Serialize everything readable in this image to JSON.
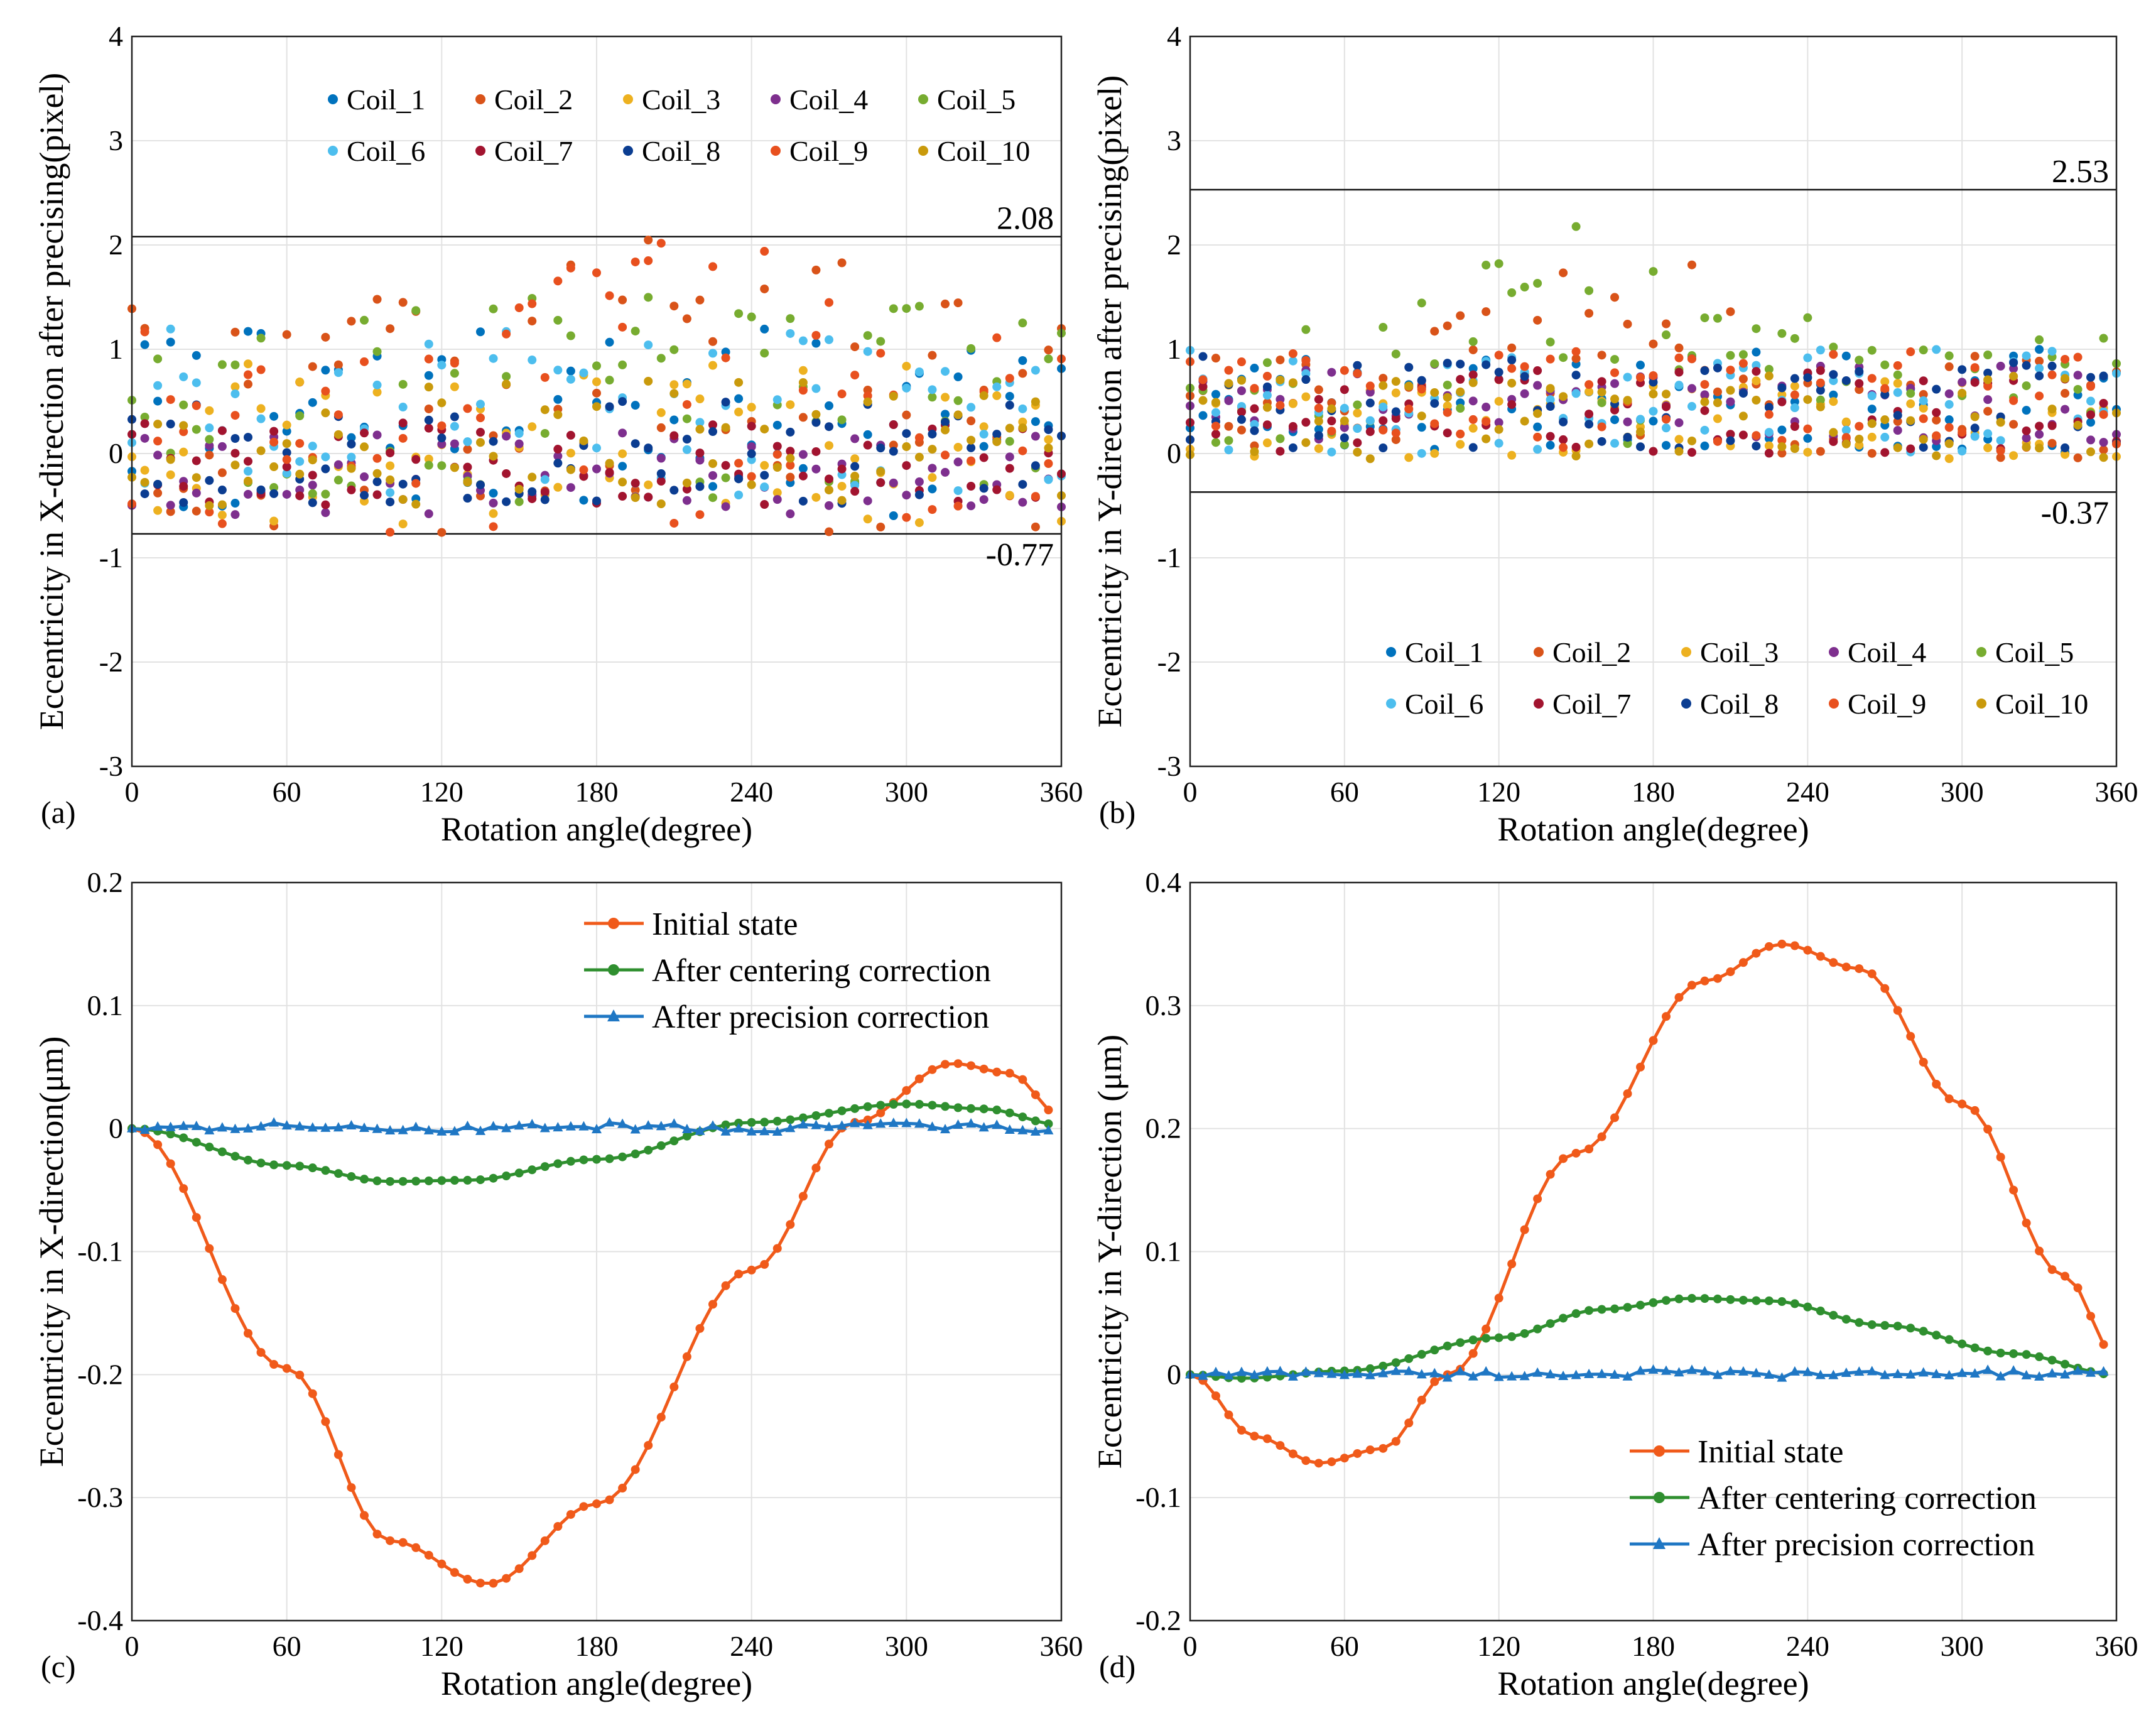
{
  "colors": {
    "coil": [
      "#0072bd",
      "#d95319",
      "#edb120",
      "#7e2f8e",
      "#77ac30",
      "#4dbeee",
      "#a2142f",
      "#0b3d91",
      "#e8501e",
      "#c99a0c"
    ],
    "initial": "#f05a1a",
    "centering": "#2f8f2f",
    "precision": "#1f77c4"
  },
  "chart_data": [
    {
      "type": "scatter",
      "panel": "(a)",
      "xlabel": "Rotation angle(degree)",
      "ylabel": "Eccentricity in X-direction after precising(pixel)",
      "xlim": [
        0,
        360
      ],
      "ylim": [
        -3,
        4
      ],
      "xticks": [
        "0",
        "60",
        "120",
        "180",
        "240",
        "300",
        "360"
      ],
      "yticks": [
        "-3",
        "-2",
        "-1",
        "0",
        "1",
        "2",
        "3",
        "4"
      ],
      "grid": true,
      "legend_position": "top",
      "legend": [
        "Coil_1",
        "Coil_2",
        "Coil_3",
        "Coil_4",
        "Coil_5",
        "Coil_6",
        "Coil_7",
        "Coil_8",
        "Coil_9",
        "Coil_10"
      ],
      "upper_bound": 2.08,
      "lower_bound": -0.77,
      "upper_label": "2.08",
      "lower_label": "-0.77",
      "x_step": 5,
      "points_per_series": 73,
      "seed": 7,
      "base": [
        [
          0.3,
          0.9
        ],
        [
          0.2,
          1.3
        ],
        [
          0.1,
          0.8
        ],
        [
          -0.2,
          0.4
        ],
        [
          0.5,
          1.0
        ],
        [
          0.4,
          0.8
        ],
        [
          -0.1,
          0.4
        ],
        [
          0.0,
          0.5
        ],
        [
          0.2,
          1.0
        ],
        [
          0.1,
          0.6
        ]
      ],
      "arch_series": [
        1,
        8
      ],
      "arch_center": 215,
      "arch_height": 1.4
    },
    {
      "type": "scatter",
      "panel": "(b)",
      "xlabel": "Rotation angle(degree)",
      "ylabel": "Eccentricity in Y-direction after precising(pixel)",
      "xlim": [
        0,
        360
      ],
      "ylim": [
        -3,
        4
      ],
      "xticks": [
        "0",
        "60",
        "120",
        "180",
        "240",
        "300",
        "360"
      ],
      "yticks": [
        "-3",
        "-2",
        "-1",
        "0",
        "1",
        "2",
        "3",
        "4"
      ],
      "grid": true,
      "legend_position": "bottom",
      "legend": [
        "Coil_1",
        "Coil_2",
        "Coil_3",
        "Coil_4",
        "Coil_5",
        "Coil_6",
        "Coil_7",
        "Coil_8",
        "Coil_9",
        "Coil_10"
      ],
      "upper_bound": 2.53,
      "lower_bound": -0.37,
      "upper_label": "2.53",
      "lower_label": "-0.37",
      "x_step": 5,
      "points_per_series": 73,
      "seed": 23,
      "base": [
        [
          0.5,
          0.5
        ],
        [
          0.45,
          0.5
        ],
        [
          0.35,
          0.4
        ],
        [
          0.5,
          0.4
        ],
        [
          0.6,
          0.6
        ],
        [
          0.5,
          0.5
        ],
        [
          0.4,
          0.4
        ],
        [
          0.5,
          0.45
        ],
        [
          0.5,
          0.5
        ],
        [
          0.35,
          0.4
        ]
      ],
      "arch_series": [
        1,
        4
      ],
      "arch_center": 160,
      "arch_height": 1.3
    },
    {
      "type": "line",
      "panel": "(c)",
      "xlabel": "Rotation angle(degree)",
      "ylabel": "Eccentricity in X-direction(μm)",
      "xlim": [
        0,
        360
      ],
      "ylim": [
        -0.4,
        0.2
      ],
      "xticks": [
        "0",
        "60",
        "120",
        "180",
        "240",
        "300",
        "360"
      ],
      "yticks": [
        "-0.4",
        "-0.3",
        "-0.2",
        "-0.1",
        "0",
        "0.1",
        "0.2"
      ],
      "ytick_values": [
        -0.4,
        -0.3,
        -0.2,
        -0.1,
        0,
        0.1,
        0.2
      ],
      "grid": true,
      "legend_position": "top-right",
      "x_step": 5,
      "series": [
        {
          "name": "Initial state",
          "marker": "circle",
          "color_key": "initial",
          "keypoints": [
            [
              0,
              0
            ],
            [
              60,
              -0.195
            ],
            [
              100,
              -0.335
            ],
            [
              138,
              -0.37
            ],
            [
              180,
              -0.305
            ],
            [
              240,
              -0.115
            ],
            [
              280,
              0.005
            ],
            [
              318,
              0.053
            ],
            [
              340,
              0.045
            ],
            [
              360,
              0.01
            ]
          ]
        },
        {
          "name": "After centering correction",
          "marker": "circle",
          "color_key": "centering",
          "keypoints": [
            [
              0,
              0
            ],
            [
              60,
              -0.03
            ],
            [
              100,
              -0.043
            ],
            [
              130,
              -0.042
            ],
            [
              180,
              -0.025
            ],
            [
              240,
              0.005
            ],
            [
              300,
              0.02
            ],
            [
              330,
              0.016
            ],
            [
              360,
              0.003
            ]
          ]
        },
        {
          "name": "After precision correction",
          "marker": "triangle",
          "color_key": "precision",
          "keypoints": [
            [
              0,
              0
            ],
            [
              60,
              0.002
            ],
            [
              120,
              0.0
            ],
            [
              180,
              0.002
            ],
            [
              240,
              0.0
            ],
            [
              300,
              0.002
            ],
            [
              360,
              0.0
            ]
          ],
          "jitter": 0.003
        }
      ]
    },
    {
      "type": "line",
      "panel": "(d)",
      "xlabel": "Rotation angle(degree)",
      "ylabel": "Eccentricity in Y-direction (μm)",
      "xlim": [
        0,
        360
      ],
      "ylim": [
        -0.2,
        0.4
      ],
      "xticks": [
        "0",
        "60",
        "120",
        "180",
        "240",
        "300",
        "360"
      ],
      "yticks": [
        "-0.2",
        "-0.1",
        "0",
        "0.1",
        "0.2",
        "0.3",
        "0.4"
      ],
      "ytick_values": [
        -0.2,
        -0.1,
        0,
        0.1,
        0.2,
        0.3,
        0.4
      ],
      "grid": true,
      "legend_position": "bottom-right",
      "x_step": 5,
      "series": [
        {
          "name": "Initial state",
          "marker": "circle",
          "color_key": "initial",
          "keypoints": [
            [
              0,
              0
            ],
            [
              25,
              -0.05
            ],
            [
              50,
              -0.072
            ],
            [
              75,
              -0.06
            ],
            [
              100,
              0.0
            ],
            [
              150,
              0.18
            ],
            [
              200,
              0.32
            ],
            [
              230,
              0.35
            ],
            [
              260,
              0.33
            ],
            [
              300,
              0.22
            ],
            [
              340,
              0.08
            ],
            [
              360,
              0.015
            ]
          ]
        },
        {
          "name": "After centering correction",
          "marker": "circle",
          "color_key": "centering",
          "keypoints": [
            [
              0,
              0
            ],
            [
              20,
              -0.003
            ],
            [
              60,
              0.003
            ],
            [
              120,
              0.03
            ],
            [
              160,
              0.053
            ],
            [
              195,
              0.062
            ],
            [
              225,
              0.06
            ],
            [
              270,
              0.04
            ],
            [
              320,
              0.017
            ],
            [
              360,
              0.0
            ]
          ]
        },
        {
          "name": "After precision correction",
          "marker": "triangle",
          "color_key": "precision",
          "keypoints": [
            [
              0,
              0
            ],
            [
              60,
              0.001
            ],
            [
              120,
              0.0
            ],
            [
              180,
              0.001
            ],
            [
              240,
              0.0
            ],
            [
              300,
              0.001
            ],
            [
              360,
              0.0
            ]
          ],
          "jitter": 0.003
        }
      ]
    }
  ]
}
